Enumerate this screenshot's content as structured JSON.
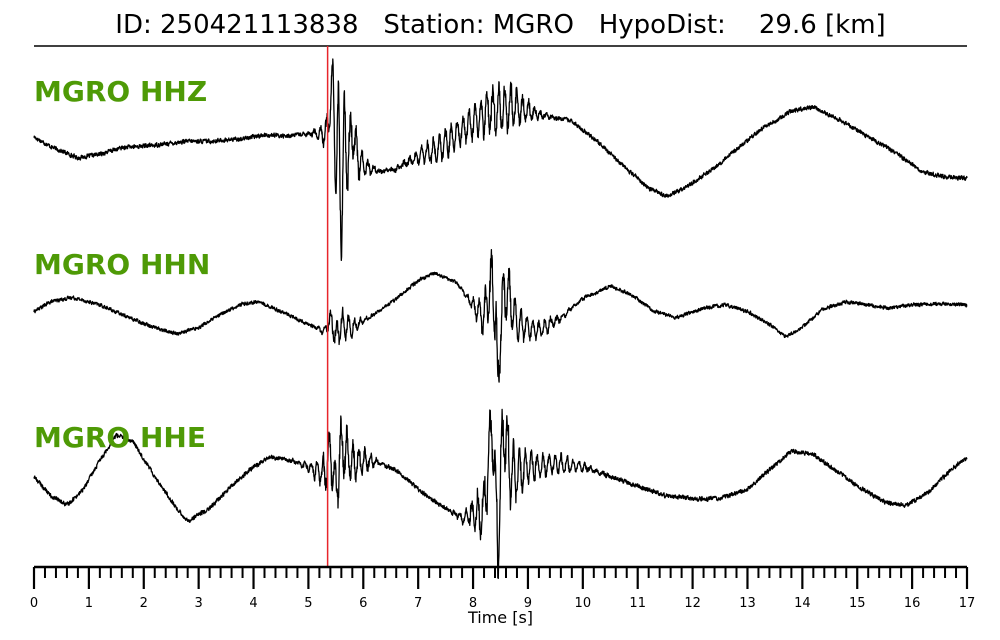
{
  "header": {
    "event_id_label": "ID:",
    "event_id": "250421113838",
    "station_label": "Station:",
    "station": "MGRO",
    "hypodist_label": "HypoDist:",
    "hypodist_value": "29.6",
    "hypodist_unit": "[km]"
  },
  "colors": {
    "trace": "#000000",
    "pick_line": "#e8252b",
    "label": "#4e9a06",
    "axis": "#000000"
  },
  "chart_data": {
    "type": "line",
    "xlabel": "Time [s]",
    "xlim": [
      0,
      17
    ],
    "major_ticks": [
      0,
      1,
      2,
      3,
      4,
      5,
      6,
      7,
      8,
      9,
      10,
      11,
      12,
      13,
      14,
      15,
      16,
      17
    ],
    "minor_tick_step": 0.2,
    "grid": false,
    "pick_time": 5.35,
    "series": [
      {
        "name": "MGRO HHZ",
        "noise": 0.03,
        "points": [
          [
            0,
            0.05
          ],
          [
            0.3,
            -0.1
          ],
          [
            0.8,
            -0.28
          ],
          [
            1.2,
            -0.22
          ],
          [
            1.6,
            -0.12
          ],
          [
            2.2,
            -0.08
          ],
          [
            2.8,
            -0.02
          ],
          [
            3.2,
            -0.02
          ],
          [
            3.8,
            0.02
          ],
          [
            4.2,
            0.08
          ],
          [
            4.6,
            0.06
          ],
          [
            5.0,
            0.1
          ],
          [
            5.3,
            0.1
          ],
          [
            5.35,
            0.2
          ],
          [
            5.45,
            1.0
          ],
          [
            5.5,
            -0.7
          ],
          [
            5.55,
            0.5
          ],
          [
            5.6,
            -1.6
          ],
          [
            5.65,
            0.3
          ],
          [
            5.7,
            -0.4
          ],
          [
            5.8,
            0.15
          ],
          [
            5.9,
            -0.3
          ],
          [
            6.0,
            -0.4
          ],
          [
            6.3,
            -0.5
          ],
          [
            6.6,
            -0.45
          ],
          [
            7.0,
            -0.25
          ],
          [
            7.4,
            -0.12
          ],
          [
            7.8,
            0.15
          ],
          [
            8.3,
            0.45
          ],
          [
            8.7,
            0.55
          ],
          [
            9.2,
            0.4
          ],
          [
            9.8,
            0.3
          ],
          [
            10.3,
            -0.05
          ],
          [
            10.8,
            -0.45
          ],
          [
            11.2,
            -0.75
          ],
          [
            11.5,
            -0.88
          ],
          [
            11.8,
            -0.78
          ],
          [
            12.3,
            -0.5
          ],
          [
            12.8,
            -0.15
          ],
          [
            13.3,
            0.2
          ],
          [
            13.8,
            0.45
          ],
          [
            14.2,
            0.52
          ],
          [
            14.7,
            0.3
          ],
          [
            15.2,
            0.05
          ],
          [
            15.7,
            -0.2
          ],
          [
            16.2,
            -0.5
          ],
          [
            16.6,
            -0.58
          ],
          [
            17,
            -0.6
          ]
        ],
        "bursts": [
          {
            "center": 5.65,
            "width": 0.35,
            "amp": 0.45
          },
          {
            "center": 7.5,
            "width": 0.6,
            "amp": 0.18
          },
          {
            "center": 8.5,
            "width": 0.55,
            "amp": 0.32
          }
        ]
      },
      {
        "name": "MGRO HHN",
        "noise": 0.025,
        "points": [
          [
            0,
            -0.1
          ],
          [
            0.3,
            0.05
          ],
          [
            0.7,
            0.12
          ],
          [
            1.2,
            0.0
          ],
          [
            1.8,
            -0.22
          ],
          [
            2.3,
            -0.38
          ],
          [
            2.6,
            -0.45
          ],
          [
            3.0,
            -0.35
          ],
          [
            3.5,
            -0.1
          ],
          [
            3.8,
            0.02
          ],
          [
            4.1,
            0.05
          ],
          [
            4.5,
            -0.1
          ],
          [
            5.0,
            -0.3
          ],
          [
            5.3,
            -0.42
          ],
          [
            5.4,
            -0.2
          ],
          [
            5.5,
            -0.5
          ],
          [
            5.6,
            -0.3
          ],
          [
            5.8,
            -0.35
          ],
          [
            6.2,
            -0.15
          ],
          [
            6.6,
            0.1
          ],
          [
            7.0,
            0.38
          ],
          [
            7.3,
            0.5
          ],
          [
            7.7,
            0.35
          ],
          [
            8.0,
            0.0
          ],
          [
            8.2,
            -0.2
          ],
          [
            8.35,
            0.4
          ],
          [
            8.42,
            -0.3
          ],
          [
            8.45,
            -1.5
          ],
          [
            8.5,
            -0.2
          ],
          [
            8.6,
            0.3
          ],
          [
            8.8,
            -0.3
          ],
          [
            9.2,
            -0.4
          ],
          [
            9.6,
            -0.2
          ],
          [
            10.0,
            0.1
          ],
          [
            10.5,
            0.3
          ],
          [
            10.9,
            0.15
          ],
          [
            11.3,
            -0.1
          ],
          [
            11.7,
            -0.2
          ],
          [
            12.2,
            -0.05
          ],
          [
            12.6,
            0.0
          ],
          [
            13.0,
            -0.1
          ],
          [
            13.4,
            -0.3
          ],
          [
            13.7,
            -0.5
          ],
          [
            14.0,
            -0.35
          ],
          [
            14.4,
            -0.05
          ],
          [
            14.8,
            0.05
          ],
          [
            15.2,
            0.0
          ],
          [
            15.6,
            -0.05
          ],
          [
            16.0,
            0.0
          ],
          [
            16.5,
            0.02
          ],
          [
            17,
            0.0
          ]
        ],
        "bursts": [
          {
            "center": 5.6,
            "width": 0.3,
            "amp": 0.2
          },
          {
            "center": 8.45,
            "width": 0.35,
            "amp": 0.45
          },
          {
            "center": 9.0,
            "width": 0.6,
            "amp": 0.12
          }
        ]
      },
      {
        "name": "MGRO HHE",
        "noise": 0.03,
        "points": [
          [
            0,
            -0.1
          ],
          [
            0.3,
            -0.4
          ],
          [
            0.6,
            -0.55
          ],
          [
            0.9,
            -0.3
          ],
          [
            1.2,
            0.15
          ],
          [
            1.5,
            0.55
          ],
          [
            1.8,
            0.45
          ],
          [
            2.2,
            -0.1
          ],
          [
            2.6,
            -0.6
          ],
          [
            2.8,
            -0.8
          ],
          [
            3.2,
            -0.6
          ],
          [
            3.6,
            -0.25
          ],
          [
            4.0,
            0.05
          ],
          [
            4.3,
            0.2
          ],
          [
            4.7,
            0.15
          ],
          [
            5.0,
            0.05
          ],
          [
            5.3,
            -0.05
          ],
          [
            5.4,
            0.3
          ],
          [
            5.5,
            -0.3
          ],
          [
            5.6,
            0.4
          ],
          [
            5.8,
            0.1
          ],
          [
            6.2,
            0.15
          ],
          [
            6.6,
            0.0
          ],
          [
            7.0,
            -0.3
          ],
          [
            7.4,
            -0.55
          ],
          [
            7.8,
            -0.75
          ],
          [
            8.2,
            -0.65
          ],
          [
            8.35,
            0.8
          ],
          [
            8.45,
            -1.2
          ],
          [
            8.55,
            0.7
          ],
          [
            8.7,
            -0.1
          ],
          [
            9.0,
            0.05
          ],
          [
            9.5,
            0.1
          ],
          [
            10.0,
            0.05
          ],
          [
            10.5,
            -0.1
          ],
          [
            11.0,
            -0.25
          ],
          [
            11.5,
            -0.4
          ],
          [
            12.0,
            -0.45
          ],
          [
            12.5,
            -0.45
          ],
          [
            13.0,
            -0.3
          ],
          [
            13.4,
            0.0
          ],
          [
            13.8,
            0.3
          ],
          [
            14.2,
            0.25
          ],
          [
            14.6,
            0.0
          ],
          [
            15.0,
            -0.25
          ],
          [
            15.5,
            -0.5
          ],
          [
            15.9,
            -0.55
          ],
          [
            16.3,
            -0.35
          ],
          [
            16.7,
            0.0
          ],
          [
            17,
            0.2
          ]
        ],
        "bursts": [
          {
            "center": 5.6,
            "width": 0.45,
            "amp": 0.4
          },
          {
            "center": 8.45,
            "width": 0.45,
            "amp": 0.55
          },
          {
            "center": 9.3,
            "width": 0.7,
            "amp": 0.15
          }
        ]
      }
    ]
  }
}
